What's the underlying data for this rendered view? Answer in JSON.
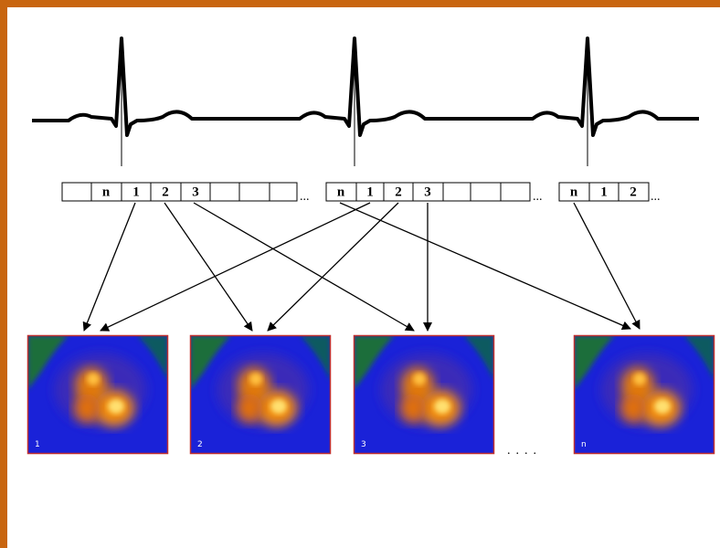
{
  "strips": [
    {
      "cells": [
        "n",
        "1",
        "2",
        "3"
      ],
      "ellipsis": "..."
    },
    {
      "cells": [
        "n",
        "1",
        "2",
        "3"
      ],
      "ellipsis": "..."
    },
    {
      "cells": [
        "n",
        "1",
        "2"
      ],
      "ellipsis": "..."
    }
  ],
  "images": [
    {
      "label": "1"
    },
    {
      "label": "2"
    },
    {
      "label": "3"
    },
    {
      "label": "n"
    }
  ],
  "images_ellipsis": "...."
}
